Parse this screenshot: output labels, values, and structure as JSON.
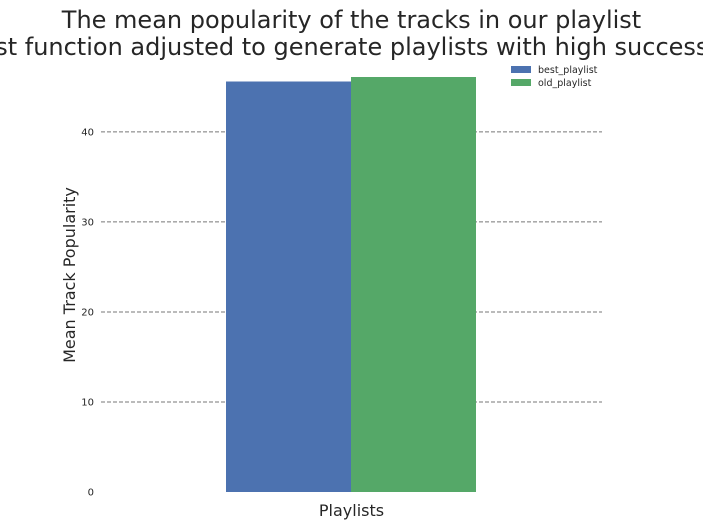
{
  "chart_data": {
    "type": "bar",
    "title": [
      "The mean popularity of the tracks in our playlist",
      "(cost function adjusted to generate playlists with high successes)"
    ],
    "xlabel": "Playlists",
    "ylabel": "Mean Track Popularity",
    "categories": [
      ""
    ],
    "series": [
      {
        "name": "best_playlist",
        "values": [
          45.6
        ],
        "color": "#4c72b0"
      },
      {
        "name": "old_playlist",
        "values": [
          46.1
        ],
        "color": "#55a868"
      }
    ],
    "ylim": [
      0,
      46.1
    ],
    "yticks": [
      0,
      10,
      20,
      30,
      40
    ],
    "grid": "horizontal dashed",
    "legend": "top-right"
  }
}
